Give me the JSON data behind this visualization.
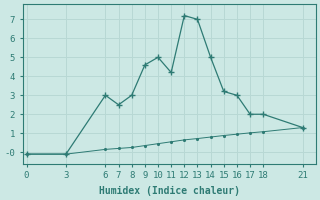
{
  "line1_x": [
    0,
    3,
    6,
    7,
    8,
    9,
    10,
    11,
    12,
    13,
    14,
    15,
    16,
    17,
    18,
    21
  ],
  "line1_y": [
    -0.1,
    -0.1,
    3.0,
    2.5,
    3.0,
    4.6,
    5.0,
    4.2,
    7.2,
    7.0,
    5.0,
    3.2,
    3.0,
    2.0,
    2.0,
    1.3
  ],
  "line2_x": [
    0,
    3,
    6,
    7,
    8,
    9,
    10,
    11,
    12,
    13,
    14,
    15,
    16,
    17,
    18,
    21
  ],
  "line2_y": [
    -0.1,
    -0.1,
    0.15,
    0.2,
    0.25,
    0.35,
    0.45,
    0.55,
    0.65,
    0.72,
    0.8,
    0.88,
    0.95,
    1.02,
    1.08,
    1.3
  ],
  "line_color": "#2e7b74",
  "bg_color": "#cce8e4",
  "grid_color": "#b8d8d4",
  "xlabel": "Humidex (Indice chaleur)",
  "xticks": [
    0,
    3,
    6,
    7,
    8,
    9,
    10,
    11,
    12,
    13,
    14,
    15,
    16,
    17,
    18,
    21
  ],
  "yticks": [
    0,
    1,
    2,
    3,
    4,
    5,
    6,
    7
  ],
  "ytick_labels": [
    "-0",
    "1",
    "2",
    "3",
    "4",
    "5",
    "6",
    "7"
  ],
  "ylim": [
    -0.6,
    7.8
  ],
  "xlim": [
    -0.3,
    22.0
  ],
  "xlabel_fontsize": 7,
  "tick_fontsize": 6.5,
  "font_family": "monospace"
}
